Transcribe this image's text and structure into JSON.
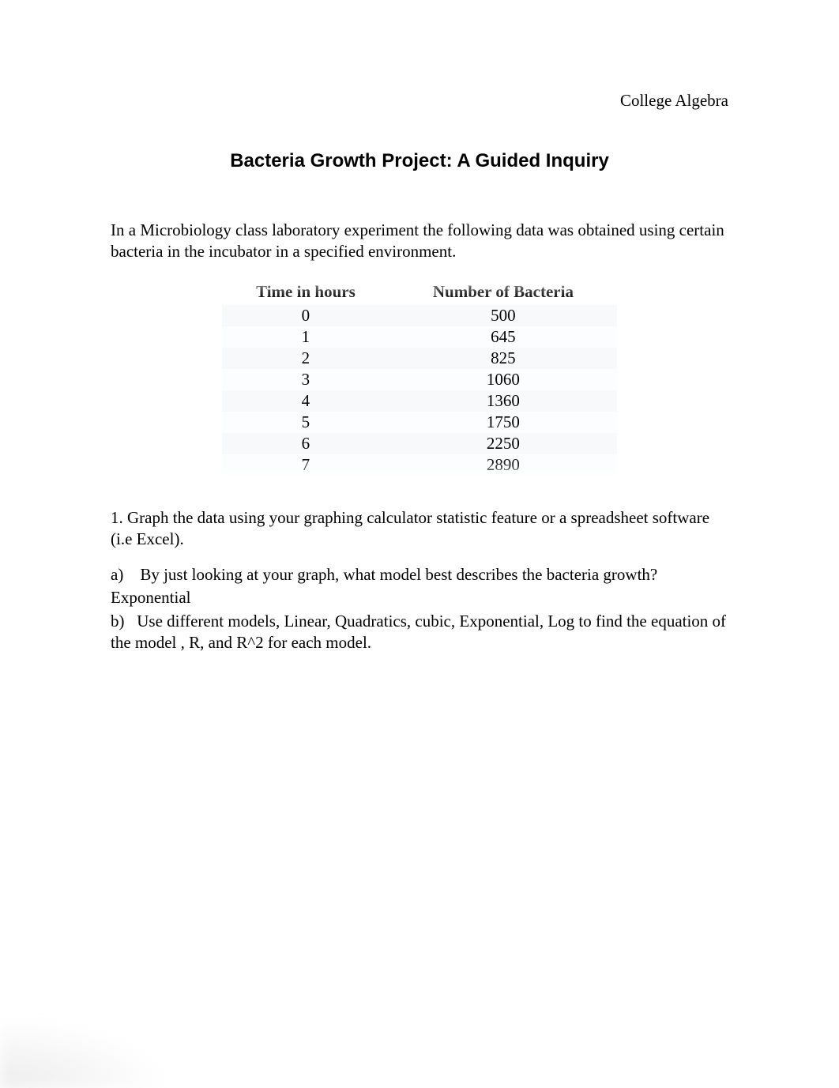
{
  "header": {
    "course": "College Algebra"
  },
  "title": "Bacteria Growth Project: A Guided Inquiry",
  "intro": "In a Microbiology class laboratory experiment the following data was obtained using certain bacteria in the incubator in a specified environment.",
  "table": {
    "columns": [
      "Time in hours",
      "Number of Bacteria"
    ],
    "rows": [
      [
        "0",
        "500"
      ],
      [
        "1",
        "645"
      ],
      [
        "2",
        "825"
      ],
      [
        "3",
        "1060"
      ],
      [
        "4",
        "1360"
      ],
      [
        "5",
        "1750"
      ],
      [
        "6",
        "2250"
      ],
      [
        "7",
        "2890"
      ]
    ],
    "header_bg": "#f7f9fb",
    "row_alt_bg": "#fcfdfe",
    "col_widths": [
      0.4,
      0.6
    ],
    "font_size": 21,
    "header_font_weight": "bold"
  },
  "questions": {
    "q1": "1. Graph the data using your graphing calculator statistic feature or a spreadsheet software (i.e Excel).",
    "qa_prefix": "a)",
    "qa_text": "By just looking at your graph, what model best describes the bacteria growth?",
    "qa_answer": "Exponential",
    "qb_prefix": "b)",
    "qb_text": "Use different models, Linear, Quadratics, cubic, Exponential, Log to find the equation of the model , R, and R^2 for each model."
  },
  "colors": {
    "background": "#ffffff",
    "text": "#000000"
  },
  "typography": {
    "body_font": "Times New Roman",
    "title_font": "Arial",
    "body_size": 21,
    "title_size": 24
  }
}
